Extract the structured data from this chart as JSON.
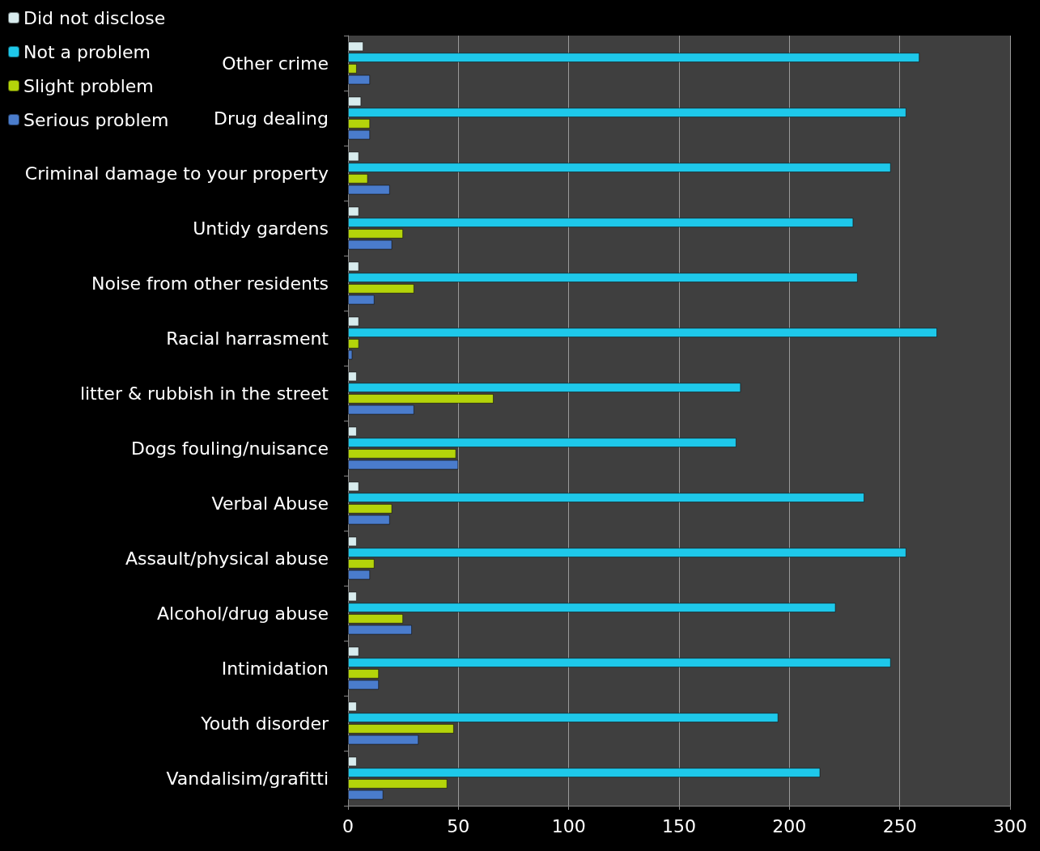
{
  "chart_data": {
    "type": "bar",
    "orientation": "horizontal",
    "categories": [
      "Other crime",
      "Drug dealing",
      "Criminal damage to your property",
      "Untidy gardens",
      "Noise from other residents",
      "Racial harrasment",
      "litter & rubbish in the street",
      "Dogs fouling/nuisance",
      "Verbal Abuse",
      "Assault/physical abuse",
      "Alcohol/drug abuse",
      "Intimidation",
      "Youth disorder",
      "Vandalisim/grafitti"
    ],
    "series": [
      {
        "name": "Did not disclose",
        "color": "#d8ecee",
        "values": [
          7,
          6,
          5,
          5,
          5,
          5,
          4,
          4,
          5,
          4,
          4,
          5,
          4,
          4
        ]
      },
      {
        "name": "Not a problem",
        "color": "#1ec8ea",
        "values": [
          259,
          253,
          246,
          229,
          231,
          267,
          178,
          176,
          234,
          253,
          221,
          246,
          195,
          214
        ]
      },
      {
        "name": "Slight problem",
        "color": "#b4d40a",
        "values": [
          4,
          10,
          9,
          25,
          30,
          5,
          66,
          49,
          20,
          12,
          25,
          14,
          48,
          45
        ]
      },
      {
        "name": "Serious problem",
        "color": "#4a7ccc",
        "values": [
          10,
          10,
          19,
          20,
          12,
          2,
          30,
          50,
          19,
          10,
          29,
          14,
          32,
          16
        ]
      }
    ],
    "xlim": [
      0,
      300
    ],
    "xticks": [
      0,
      50,
      100,
      150,
      200,
      250,
      300
    ],
    "grid": "x",
    "legend": "top left"
  }
}
